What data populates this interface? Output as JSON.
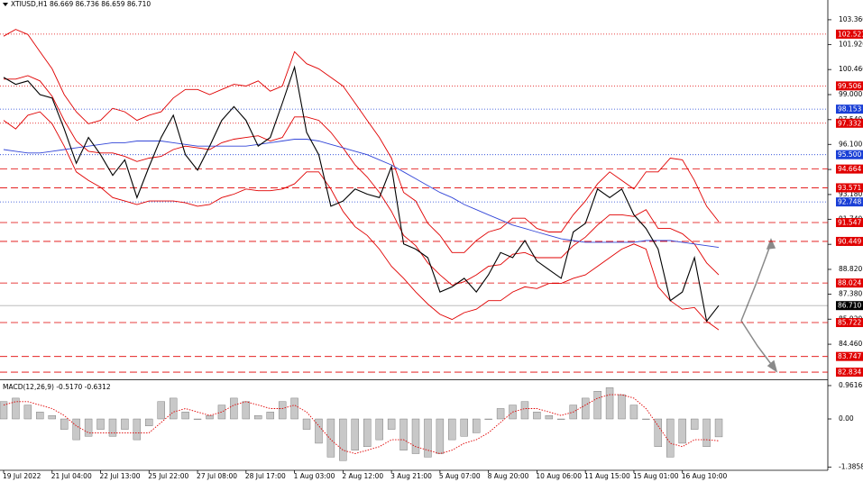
{
  "chart_data": [
    {
      "type": "line",
      "title": "XTIUSD,H1  86.669 86.736 86.659 86.710",
      "x": [
        0,
        1,
        2,
        3,
        4,
        5,
        6,
        7,
        8,
        9,
        10,
        11,
        12,
        13,
        14,
        15,
        16,
        17,
        18,
        19,
        20,
        21,
        22,
        23,
        24,
        25,
        26,
        27,
        28,
        29,
        30,
        31,
        32,
        33,
        34,
        35,
        36,
        37,
        38,
        39,
        40,
        41,
        42,
        43,
        44,
        45,
        46,
        47,
        48,
        49,
        50,
        51,
        52,
        53,
        54,
        55,
        56,
        57,
        58,
        59
      ],
      "xlim": [
        0,
        68
      ],
      "xticks": [
        {
          "value": 0,
          "label": "19 Jul 2022"
        },
        {
          "value": 4,
          "label": "21 Jul 04:00"
        },
        {
          "value": 8,
          "label": "22 Jul 13:00"
        },
        {
          "value": 12,
          "label": "25 Jul 22:00"
        },
        {
          "value": 16,
          "label": "27 Jul 08:00"
        },
        {
          "value": 20,
          "label": "28 Jul 17:00"
        },
        {
          "value": 24,
          "label": "1 Aug 03:00"
        },
        {
          "value": 28,
          "label": "2 Aug 12:00"
        },
        {
          "value": 32,
          "label": "3 Aug 21:00"
        },
        {
          "value": 36,
          "label": "5 Aug 07:00"
        },
        {
          "value": 40,
          "label": "8 Aug 20:00"
        },
        {
          "value": 44,
          "label": "10 Aug 06:00"
        },
        {
          "value": 48,
          "label": "11 Aug 15:00"
        },
        {
          "value": 52,
          "label": "15 Aug 01:00"
        },
        {
          "value": 56,
          "label": "16 Aug 10:00"
        }
      ],
      "ylim": [
        82.47,
        104.51
      ],
      "yticks": [
        {
          "value": 103.36,
          "label": "103.360"
        },
        {
          "value": 101.92,
          "label": "101.920"
        },
        {
          "value": 100.46,
          "label": "100.460"
        },
        {
          "value": 99,
          "label": "99.000"
        },
        {
          "value": 97.54,
          "label": "97.540"
        },
        {
          "value": 96.1,
          "label": "96.100"
        },
        {
          "value": 94.64,
          "label": "94.640"
        },
        {
          "value": 93.18,
          "label": "93.180"
        },
        {
          "value": 91.74,
          "label": "91.740"
        },
        {
          "value": 90.28,
          "label": "90.280"
        },
        {
          "value": 88.82,
          "label": "88.820"
        },
        {
          "value": 87.38,
          "label": "87.380"
        },
        {
          "value": 85.92,
          "label": "85.920"
        },
        {
          "value": 84.46,
          "label": "84.460"
        }
      ],
      "series": [
        {
          "color": "#e00000",
          "values": [
            102.4,
            102.8,
            102.5,
            101.5,
            100.5,
            99.0,
            98.0,
            97.3,
            97.5,
            98.2,
            98.0,
            97.5,
            97.8,
            98.0,
            98.8,
            99.3,
            99.3,
            99.0,
            99.3,
            99.6,
            99.5,
            99.8,
            99.2,
            99.5,
            101.5,
            100.8,
            100.5,
            100.0,
            99.5,
            98.5,
            97.5,
            96.5,
            95.3,
            93.3,
            92.8,
            91.5,
            90.8,
            89.8,
            89.8,
            90.5,
            91.0,
            91.2,
            91.8,
            91.8,
            91.2,
            91.0,
            91.0,
            92.0,
            92.8,
            93.8,
            94.5,
            94.0,
            93.5,
            94.5,
            94.5,
            95.3,
            95.2,
            94.0,
            92.5,
            91.6
          ]
        },
        {
          "color": "#e00000",
          "values": [
            99.9,
            99.9,
            100.1,
            99.8,
            98.9,
            97.5,
            96.3,
            95.7,
            95.6,
            95.6,
            95.4,
            95.1,
            95.3,
            95.4,
            95.8,
            96.0,
            95.9,
            95.8,
            96.2,
            96.4,
            96.5,
            96.6,
            96.3,
            96.5,
            97.7,
            97.7,
            97.5,
            96.8,
            95.9,
            94.9,
            94.2,
            93.3,
            92.2,
            90.8,
            90.2,
            89.2,
            88.5,
            87.9,
            88.1,
            88.5,
            89.0,
            89.1,
            89.7,
            89.8,
            89.5,
            89.5,
            89.5,
            90.2,
            90.7,
            91.4,
            92.0,
            92.0,
            91.9,
            92.3,
            91.2,
            91.2,
            90.9,
            90.3,
            89.2,
            88.5
          ]
        },
        {
          "color": "#e00000",
          "values": [
            97.5,
            97.0,
            97.8,
            98.0,
            97.3,
            96.0,
            94.5,
            94.0,
            93.6,
            93.0,
            92.8,
            92.6,
            92.8,
            92.8,
            92.8,
            92.7,
            92.5,
            92.6,
            93.0,
            93.2,
            93.5,
            93.4,
            93.4,
            93.5,
            93.8,
            94.5,
            94.5,
            93.5,
            92.2,
            91.3,
            90.8,
            90.0,
            89.0,
            88.3,
            87.5,
            86.8,
            86.2,
            85.9,
            86.3,
            86.5,
            87.0,
            87.0,
            87.5,
            87.8,
            87.7,
            88.0,
            88.0,
            88.3,
            88.5,
            89.0,
            89.5,
            90.0,
            90.3,
            90.0,
            87.8,
            87.0,
            86.5,
            86.6,
            85.8,
            85.3
          ]
        },
        {
          "color": "#3346d8",
          "values": [
            95.8,
            95.7,
            95.6,
            95.6,
            95.7,
            95.8,
            95.9,
            96.0,
            96.1,
            96.2,
            96.2,
            96.3,
            96.3,
            96.3,
            96.2,
            96.1,
            96.0,
            96.0,
            96.0,
            96.0,
            96.0,
            96.1,
            96.2,
            96.3,
            96.4,
            96.4,
            96.3,
            96.1,
            95.9,
            95.7,
            95.5,
            95.2,
            94.9,
            94.5,
            94.1,
            93.7,
            93.3,
            93.0,
            92.6,
            92.3,
            92.0,
            91.7,
            91.4,
            91.2,
            91.0,
            90.8,
            90.6,
            90.5,
            90.4,
            90.4,
            90.4,
            90.4,
            90.4,
            90.5,
            90.5,
            90.5,
            90.4,
            90.3,
            90.2,
            90.1
          ]
        },
        {
          "color": "#000000",
          "values": [
            100.0,
            99.6,
            99.8,
            99.0,
            98.8,
            97.0,
            95.0,
            96.5,
            95.5,
            94.3,
            95.2,
            93.0,
            94.8,
            96.5,
            97.8,
            95.5,
            94.6,
            96.0,
            97.5,
            98.3,
            97.5,
            96.0,
            96.5,
            98.5,
            100.6,
            96.8,
            95.5,
            92.5,
            92.8,
            93.5,
            93.2,
            93.0,
            94.8,
            90.3,
            90.0,
            89.5,
            87.5,
            87.8,
            88.3,
            87.5,
            88.5,
            89.8,
            89.5,
            90.5,
            89.3,
            88.8,
            88.3,
            91.0,
            91.5,
            93.5,
            93.0,
            93.5,
            92.0,
            91.2,
            90.0,
            87.0,
            87.5,
            89.5,
            85.8,
            86.71
          ]
        }
      ],
      "levels": [
        {
          "value": 102.521,
          "color": "#e00000",
          "style": "dotted"
        },
        {
          "value": 99.506,
          "color": "#e00000",
          "style": "dotted"
        },
        {
          "value": 98.153,
          "color": "#1a3fd6",
          "style": "dotted"
        },
        {
          "value": 97.332,
          "color": "#e00000",
          "style": "dotted"
        },
        {
          "value": 95.5,
          "label": "95.500",
          "color": "#1a3fd6",
          "style": "dotted"
        },
        {
          "value": 94.664,
          "color": "#e00000",
          "style": "dashed"
        },
        {
          "value": 93.571,
          "color": "#e00000",
          "style": "dashed"
        },
        {
          "value": 92.748,
          "color": "#1a3fd6",
          "style": "dotted"
        },
        {
          "value": 91.547,
          "color": "#e00000",
          "style": "dashed"
        },
        {
          "value": 90.449,
          "color": "#e00000",
          "style": "dashed"
        },
        {
          "value": 88.024,
          "color": "#e00000",
          "style": "dashed"
        },
        {
          "value": 86.71,
          "label": "86.710",
          "color": "#000000",
          "style": "solid"
        },
        {
          "value": 85.722,
          "color": "#e00000",
          "style": "dashed"
        },
        {
          "value": 83.747,
          "color": "#e00000",
          "style": "dashed"
        },
        {
          "value": 82.834,
          "color": "#e00000",
          "style": "dashed"
        }
      ]
    },
    {
      "type": "bar",
      "title": "MACD(12,26,9) -0.5170 -0.6312",
      "x": [
        0,
        1,
        2,
        3,
        4,
        5,
        6,
        7,
        8,
        9,
        10,
        11,
        12,
        13,
        14,
        15,
        16,
        17,
        18,
        19,
        20,
        21,
        22,
        23,
        24,
        25,
        26,
        27,
        28,
        29,
        30,
        31,
        32,
        33,
        34,
        35,
        36,
        37,
        38,
        39,
        40,
        41,
        42,
        43,
        44,
        45,
        46,
        47,
        48,
        49,
        50,
        51,
        52,
        53,
        54,
        55,
        56,
        57,
        58,
        59
      ],
      "xlim": [
        0,
        68
      ],
      "ylim": [
        -1.48,
        1.065
      ],
      "yticks": [
        0.9616,
        {
          "value": 0,
          "label": "0.00"
        },
        -1.3858
      ],
      "series": [
        {
          "color": "#9a9a9a",
          "values": [
            0.5,
            0.6,
            0.4,
            0.2,
            0.1,
            -0.3,
            -0.6,
            -0.5,
            -0.3,
            -0.5,
            -0.3,
            -0.6,
            -0.2,
            0.5,
            0.6,
            0.2,
            0.0,
            0.1,
            0.4,
            0.6,
            0.5,
            0.1,
            0.2,
            0.5,
            0.6,
            -0.3,
            -0.7,
            -1.1,
            -1.2,
            -0.9,
            -0.8,
            -0.6,
            -0.3,
            -0.9,
            -1.0,
            -1.1,
            -1.0,
            -0.6,
            -0.5,
            -0.4,
            0.0,
            0.3,
            0.4,
            0.5,
            0.2,
            0.1,
            0.0,
            0.4,
            0.6,
            0.8,
            0.9,
            0.7,
            0.4,
            0.0,
            -0.8,
            -1.1,
            -0.7,
            -0.3,
            -0.8,
            -0.517
          ]
        },
        {
          "color": "#e00000",
          "values": [
            0.4,
            0.5,
            0.5,
            0.4,
            0.3,
            0.1,
            -0.2,
            -0.4,
            -0.4,
            -0.4,
            -0.4,
            -0.4,
            -0.4,
            -0.1,
            0.2,
            0.3,
            0.2,
            0.1,
            0.2,
            0.4,
            0.5,
            0.4,
            0.3,
            0.3,
            0.4,
            0.2,
            -0.2,
            -0.6,
            -0.9,
            -1.0,
            -0.9,
            -0.8,
            -0.6,
            -0.6,
            -0.8,
            -0.9,
            -1.0,
            -0.9,
            -0.7,
            -0.6,
            -0.4,
            -0.1,
            0.2,
            0.3,
            0.3,
            0.2,
            0.1,
            0.2,
            0.4,
            0.6,
            0.7,
            0.7,
            0.6,
            0.3,
            -0.2,
            -0.7,
            -0.8,
            -0.6,
            -0.6,
            -0.6312
          ]
        }
      ]
    }
  ]
}
